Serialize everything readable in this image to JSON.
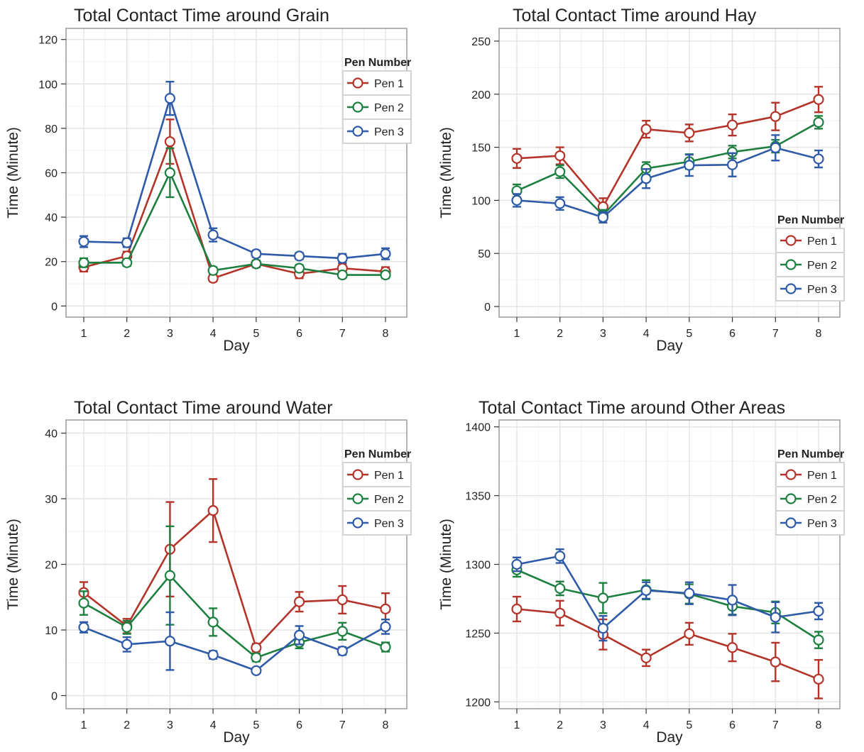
{
  "figure": {
    "legend_title": "Pen Number"
  },
  "chart_data": [
    {
      "type": "line",
      "title": "Total Contact Time around Grain",
      "xlabel": "Day",
      "ylabel": "Time (Minute)",
      "x": [
        1,
        2,
        3,
        4,
        5,
        6,
        7,
        8
      ],
      "ylim": [
        -5,
        125
      ],
      "yticks": [
        0,
        20,
        40,
        60,
        80,
        100,
        120
      ],
      "grid": true,
      "legend_position": "top-right",
      "series": [
        {
          "name": "Pen 1",
          "color": "#b5342a",
          "values": [
            17.5,
            22.5,
            74,
            12.5,
            19,
            14.5,
            17,
            15.5
          ],
          "err": [
            2,
            2,
            10,
            1.5,
            1.5,
            2,
            2,
            2
          ]
        },
        {
          "name": "Pen 2",
          "color": "#1d8040",
          "values": [
            19.5,
            19.5,
            60,
            16,
            19,
            17,
            14,
            14
          ],
          "err": [
            2,
            1.5,
            11,
            1.5,
            1.5,
            1.5,
            1.5,
            1.5
          ]
        },
        {
          "name": "Pen 3",
          "color": "#2e5aa8",
          "values": [
            29,
            28.5,
            93.5,
            32,
            23.5,
            22.5,
            21.5,
            23.5
          ],
          "err": [
            2.5,
            2,
            7.5,
            3,
            1.5,
            1.5,
            2,
            2.5
          ]
        }
      ]
    },
    {
      "type": "line",
      "title": "Total Contact Time around Hay",
      "xlabel": "Day",
      "ylabel": "Time (Minute)",
      "x": [
        1,
        2,
        3,
        4,
        5,
        6,
        7,
        8
      ],
      "ylim": [
        -10,
        262
      ],
      "yticks": [
        0,
        50,
        100,
        150,
        200,
        250
      ],
      "grid": true,
      "legend_position": "right",
      "series": [
        {
          "name": "Pen 1",
          "color": "#b5342a",
          "values": [
            139.5,
            142,
            94,
            167,
            163.5,
            171,
            179,
            195
          ],
          "err": [
            9,
            8,
            8,
            8,
            8,
            10,
            13,
            12
          ]
        },
        {
          "name": "Pen 2",
          "color": "#1d8040",
          "values": [
            109,
            127,
            86,
            130,
            136.5,
            145.5,
            151,
            173.5
          ],
          "err": [
            6,
            6,
            5,
            6,
            7,
            6,
            6,
            6
          ]
        },
        {
          "name": "Pen 3",
          "color": "#2e5aa8",
          "values": [
            100,
            97,
            84,
            120.5,
            133,
            133.5,
            149.5,
            139
          ],
          "err": [
            6,
            6,
            5,
            9,
            10,
            11,
            12,
            8
          ]
        }
      ]
    },
    {
      "type": "line",
      "title": "Total Contact Time around Water",
      "xlabel": "Day",
      "ylabel": "Time (Minute)",
      "x": [
        1,
        2,
        3,
        4,
        5,
        6,
        7,
        8
      ],
      "ylim": [
        -2,
        42
      ],
      "yticks": [
        0,
        10,
        20,
        30,
        40
      ],
      "grid": true,
      "legend_position": "top-right",
      "series": [
        {
          "name": "Pen 1",
          "color": "#b5342a",
          "values": [
            15.7,
            10.6,
            22.3,
            28.2,
            7.3,
            14.3,
            14.6,
            13.2
          ],
          "err": [
            1.6,
            1.1,
            7.2,
            4.8,
            0.6,
            1.5,
            2.1,
            2.4
          ]
        },
        {
          "name": "Pen 2",
          "color": "#1d8040",
          "values": [
            14.1,
            10.4,
            18.3,
            11.2,
            5.8,
            8.1,
            9.8,
            7.4
          ],
          "err": [
            1.8,
            1,
            7.5,
            2.1,
            0.6,
            0.9,
            1.3,
            0.7
          ]
        },
        {
          "name": "Pen 3",
          "color": "#2e5aa8",
          "values": [
            10.4,
            7.8,
            8.3,
            6.2,
            3.8,
            9.2,
            6.8,
            10.5
          ],
          "err": [
            0.8,
            1.1,
            4.4,
            0.6,
            0.4,
            1.4,
            0.6,
            1.1
          ]
        }
      ]
    },
    {
      "type": "line",
      "title": "Total Contact Time around Other Areas",
      "xlabel": "Day",
      "ylabel": "Time (Minute)",
      "x": [
        1,
        2,
        3,
        4,
        5,
        6,
        7,
        8
      ],
      "ylim": [
        1195,
        1405
      ],
      "yticks": [
        1200,
        1250,
        1300,
        1350,
        1400
      ],
      "grid": true,
      "legend_position": "top-right",
      "series": [
        {
          "name": "Pen 1",
          "color": "#b5342a",
          "values": [
            1267.5,
            1264.5,
            1249,
            1232,
            1249.5,
            1239.5,
            1229,
            1216.5
          ],
          "err": [
            9,
            9,
            11,
            6,
            8,
            10,
            14,
            14
          ]
        },
        {
          "name": "Pen 2",
          "color": "#1d8040",
          "values": [
            1296,
            1282.5,
            1275.5,
            1281.5,
            1278.5,
            1269.5,
            1265,
            1245
          ],
          "err": [
            5,
            5,
            11,
            7,
            7,
            6,
            8,
            6
          ]
        },
        {
          "name": "Pen 3",
          "color": "#2e5aa8",
          "values": [
            1300,
            1306,
            1253.5,
            1281,
            1279,
            1274,
            1261.5,
            1266
          ],
          "err": [
            5,
            5,
            9,
            6,
            8,
            11,
            11,
            6
          ]
        }
      ]
    }
  ]
}
